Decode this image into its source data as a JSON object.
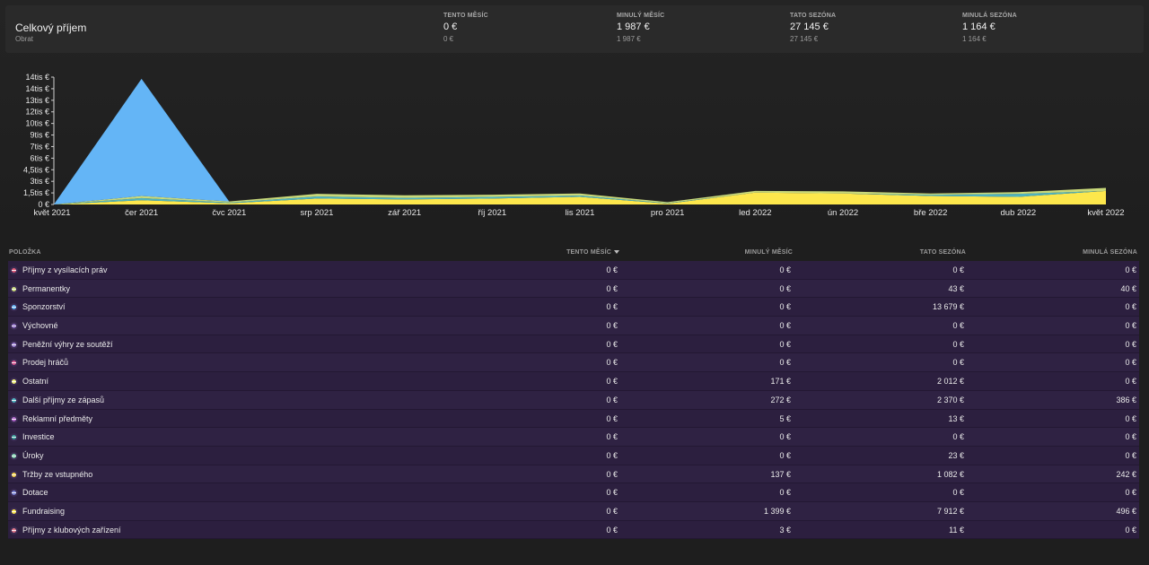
{
  "header": {
    "title": "Celkový příjem",
    "subtitle": "Obrat",
    "stats": [
      {
        "label": "TENTO MĚSÍC",
        "value": "0 €",
        "sub": "0 €"
      },
      {
        "label": "MINULÝ MĚSÍC",
        "value": "1 987 €",
        "sub": "1 987 €"
      },
      {
        "label": "TATO SEZÓNA",
        "value": "27 145 €",
        "sub": "27 145 €"
      },
      {
        "label": "MINULÁ SEZÓNA",
        "value": "1 164 €",
        "sub": "1 164 €"
      }
    ]
  },
  "chart_data": {
    "type": "area",
    "stacked": true,
    "categories": [
      "květ 2021",
      "čer 2021",
      "čvc 2021",
      "srp 2021",
      "zář 2021",
      "říj 2021",
      "lis 2021",
      "pro 2021",
      "led 2022",
      "ún 2022",
      "bře 2022",
      "dub 2022",
      "květ 2022"
    ],
    "y_tick_labels": [
      "0 €",
      "1,5tis €",
      "3tis €",
      "4,5tis €",
      "6tis €",
      "7tis €",
      "9tis €",
      "10tis €",
      "12tis €",
      "13tis €",
      "14tis €",
      "14tis €"
    ],
    "ylim": [
      0,
      15000
    ],
    "grid": false,
    "series": [
      {
        "color": "#fde74c",
        "values": [
          0,
          500,
          150,
          700,
          600,
          700,
          900,
          100,
          1400,
          1300,
          1000,
          900,
          1600
        ]
      },
      {
        "color": "#4fb3bf",
        "values": [
          0,
          250,
          80,
          250,
          180,
          200,
          150,
          60,
          0,
          0,
          150,
          350,
          0
        ]
      },
      {
        "color": "#c9d97a",
        "values": [
          0,
          250,
          120,
          300,
          300,
          250,
          250,
          120,
          200,
          250,
          150,
          200,
          350
        ]
      },
      {
        "color": "#64b5f6",
        "values": [
          0,
          13800,
          0,
          0,
          0,
          0,
          0,
          0,
          0,
          0,
          0,
          0,
          0
        ]
      }
    ]
  },
  "table": {
    "columns": [
      "POLOŽKA",
      "TENTO MĚSÍC",
      "MINULÝ MĚSÍC",
      "TATO SEZÓNA",
      "MINULÁ SEZÓNA"
    ],
    "rows": [
      {
        "name": "Příjmy z vysílacích práv",
        "color": "#e05c7a",
        "cells": [
          "0 €",
          "0 €",
          "0 €",
          "0 €"
        ]
      },
      {
        "name": "Permanentky",
        "color": "#c9d97a",
        "cells": [
          "0 €",
          "0 €",
          "43 €",
          "40 €"
        ]
      },
      {
        "name": "Sponzorství",
        "color": "#64b5f6",
        "cells": [
          "0 €",
          "0 €",
          "13 679 €",
          "0 €"
        ]
      },
      {
        "name": "Výchovné",
        "color": "#8e6fc4",
        "cells": [
          "0 €",
          "0 €",
          "0 €",
          "0 €"
        ]
      },
      {
        "name": "Peněžní výhry ze soutěží",
        "color": "#9b7fd1",
        "cells": [
          "0 €",
          "0 €",
          "0 €",
          "0 €"
        ]
      },
      {
        "name": "Prodej hráčů",
        "color": "#d6558f",
        "cells": [
          "0 €",
          "0 €",
          "0 €",
          "0 €"
        ]
      },
      {
        "name": "Ostatní",
        "color": "#f0f07a",
        "cells": [
          "0 €",
          "171 €",
          "2 012 €",
          "0 €"
        ]
      },
      {
        "name": "Další příjmy ze zápasů",
        "color": "#4fb3bf",
        "cells": [
          "0 €",
          "272 €",
          "2 370 €",
          "386 €"
        ]
      },
      {
        "name": "Reklamní předměty",
        "color": "#b067c9",
        "cells": [
          "0 €",
          "5 €",
          "13 €",
          "0 €"
        ]
      },
      {
        "name": "Investice",
        "color": "#3fa7a0",
        "cells": [
          "0 €",
          "0 €",
          "0 €",
          "0 €"
        ]
      },
      {
        "name": "Úroky",
        "color": "#7fcfae",
        "cells": [
          "0 €",
          "0 €",
          "23 €",
          "0 €"
        ]
      },
      {
        "name": "Tržby ze vstupného",
        "color": "#f5d24a",
        "cells": [
          "0 €",
          "137 €",
          "1 082 €",
          "242 €"
        ]
      },
      {
        "name": "Dotace",
        "color": "#7a83d6",
        "cells": [
          "0 €",
          "0 €",
          "0 €",
          "0 €"
        ]
      },
      {
        "name": "Fundraising",
        "color": "#fde74c",
        "cells": [
          "0 €",
          "1 399 €",
          "7 912 €",
          "496 €"
        ]
      },
      {
        "name": "Příjmy z klubových zařízení",
        "color": "#e07a8c",
        "cells": [
          "0 €",
          "3 €",
          "11 €",
          "0 €"
        ]
      }
    ]
  }
}
